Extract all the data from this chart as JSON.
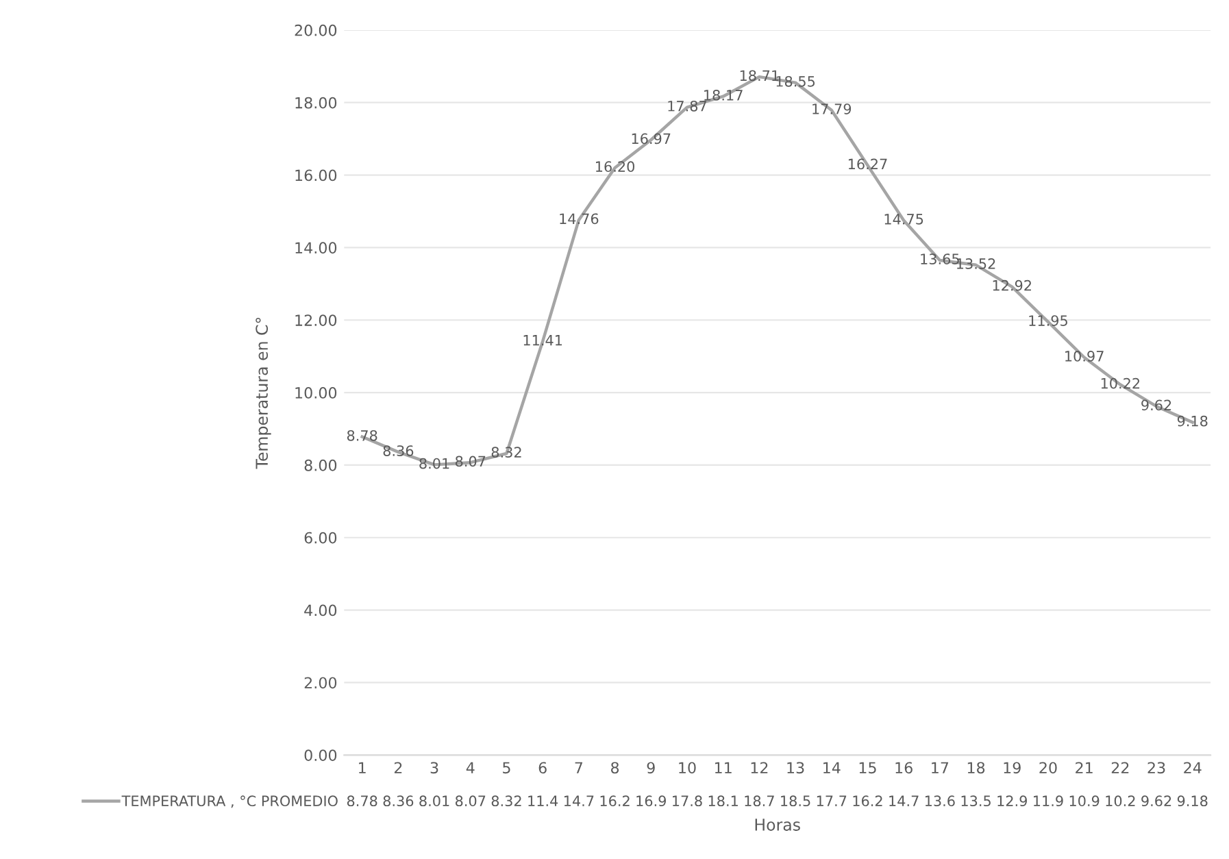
{
  "chart_data": {
    "type": "line",
    "ylabel": "Temperatura en C°",
    "xlabel": "Horas",
    "categories": [
      "1",
      "2",
      "3",
      "4",
      "5",
      "6",
      "7",
      "8",
      "9",
      "10",
      "11",
      "12",
      "13",
      "14",
      "15",
      "16",
      "17",
      "18",
      "19",
      "20",
      "21",
      "22",
      "23",
      "24"
    ],
    "series": [
      {
        "name": "TEMPERATURA , °C PROMEDIO",
        "color": "#a5a5a5",
        "values": [
          8.78,
          8.36,
          8.01,
          8.07,
          8.32,
          11.41,
          14.76,
          16.2,
          16.97,
          17.87,
          18.17,
          18.71,
          18.55,
          17.79,
          16.27,
          14.75,
          13.65,
          13.52,
          12.92,
          11.95,
          10.97,
          10.22,
          9.62,
          9.18
        ],
        "value_labels": [
          "8.78",
          "8.36",
          "8.01",
          "8.07",
          "8.32",
          "11.41",
          "14.76",
          "16.20",
          "16.97",
          "17.87",
          "18.17",
          "18.71",
          "18.55",
          "17.79",
          "16.27",
          "14.75",
          "13.65",
          "13.52",
          "12.92",
          "11.95",
          "10.97",
          "10.22",
          "9.62",
          "9.18"
        ]
      }
    ],
    "annotations": [
      "8.78",
      "8.36",
      "8.01",
      "8.07",
      "8.32",
      "11.4",
      "14.7",
      "16.2",
      "16.9",
      "17.8",
      "18.1",
      "18.7",
      "18.5",
      "17.7",
      "16.2",
      "14.7",
      "13.6",
      "13.5",
      "12.9",
      "11.9",
      "10.9",
      "10.2",
      "9.62",
      "9.18"
    ],
    "ylim": [
      0,
      20
    ],
    "yticks": [
      {
        "value": 0,
        "label": "0.00"
      },
      {
        "value": 2,
        "label": "2.00"
      },
      {
        "value": 4,
        "label": "4.00"
      },
      {
        "value": 6,
        "label": "6.00"
      },
      {
        "value": 8,
        "label": "8.00"
      },
      {
        "value": 10,
        "label": "10.00"
      },
      {
        "value": 12,
        "label": "12.00"
      },
      {
        "value": 14,
        "label": "14.00"
      },
      {
        "value": 16,
        "label": "16.00"
      },
      {
        "value": 18,
        "label": "18.00"
      },
      {
        "value": 20,
        "label": "20.00"
      }
    ],
    "grid": "y",
    "legend": "bottom",
    "marker": "none",
    "line_style": "solid"
  }
}
